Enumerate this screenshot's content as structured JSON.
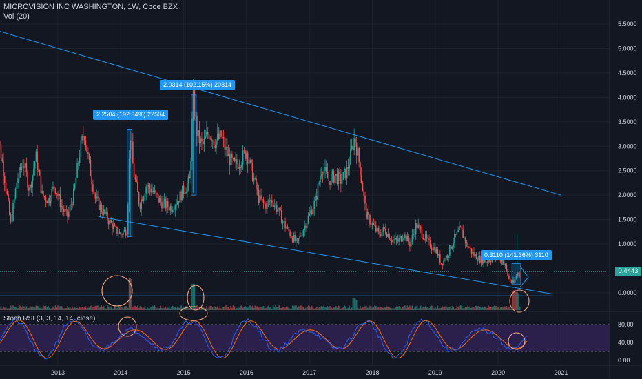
{
  "header": {
    "symbol_title": "MICROVISION INC WASHINGTON, 1W, Cboe BZX",
    "volume_label": "Vol (20)"
  },
  "indicator": {
    "label": "Stoch RSI (3, 3, 14, 14, close)"
  },
  "price_axis": {
    "ticks": [
      "5.5000",
      "5.0000",
      "4.5000",
      "4.0000",
      "3.5000",
      "3.0000",
      "2.5000",
      "2.0000",
      "1.5000",
      "1.0000",
      "0.0000"
    ],
    "current_price": "0.4443"
  },
  "rsi_axis": {
    "ticks": [
      "80.00",
      "40.00",
      "0.00"
    ]
  },
  "time_axis": {
    "ticks": [
      "2013",
      "2014",
      "2015",
      "2016",
      "2017",
      "2018",
      "2019",
      "2020",
      "2021"
    ]
  },
  "callouts": [
    {
      "text": "2.2504 (192.34%) 22504"
    },
    {
      "text": "2.0314 (102.15%) 20314"
    },
    {
      "text": "0.3110 (141.36%) 3110"
    }
  ],
  "colors": {
    "background": "#131722",
    "up_candle": "#26a69a",
    "down_candle": "#ef5350",
    "trendline": "#2196f3",
    "rsi_band": "#673ab7",
    "rsi_k": "#2962ff",
    "rsi_d": "#ff6d00",
    "annotation_circle": "#f4a77c"
  },
  "chart_data": {
    "type": "candlestick",
    "title": "MICROVISION INC WASHINGTON, 1W, Cboe BZX",
    "y_range": [
      0,
      5.8
    ],
    "x_range": [
      "2012",
      "2021"
    ],
    "price_path": [
      [
        "2012.00",
        5.3
      ],
      [
        "2012.05",
        3.2
      ],
      [
        "2012.15",
        2.4
      ],
      [
        "2012.25",
        1.4
      ],
      [
        "2012.35",
        2.3
      ],
      [
        "2012.45",
        2.7
      ],
      [
        "2012.55",
        2.1
      ],
      [
        "2012.65",
        2.8
      ],
      [
        "2012.75",
        2.0
      ],
      [
        "2012.85",
        1.9
      ],
      [
        "2012.95",
        2.2
      ],
      [
        "2013.05",
        1.8
      ],
      [
        "2013.15",
        1.55
      ],
      [
        "2013.25",
        2.0
      ],
      [
        "2013.35",
        2.9
      ],
      [
        "2013.42",
        3.3
      ],
      [
        "2013.50",
        2.6
      ],
      [
        "2013.60",
        1.9
      ],
      [
        "2013.70",
        1.7
      ],
      [
        "2013.80",
        1.5
      ],
      [
        "2013.90",
        1.3
      ],
      [
        "2014.00",
        1.2
      ],
      [
        "2014.10",
        1.3
      ],
      [
        "2014.15",
        3.3
      ],
      [
        "2014.20",
        2.5
      ],
      [
        "2014.30",
        1.8
      ],
      [
        "2014.40",
        2.2
      ],
      [
        "2014.50",
        2.1
      ],
      [
        "2014.60",
        1.9
      ],
      [
        "2014.70",
        1.8
      ],
      [
        "2014.80",
        1.75
      ],
      [
        "2014.90",
        1.9
      ],
      [
        "2015.00",
        2.1
      ],
      [
        "2015.10",
        2.3
      ],
      [
        "2015.15",
        4.0
      ],
      [
        "2015.22",
        3.2
      ],
      [
        "2015.30",
        3.0
      ],
      [
        "2015.40",
        3.3
      ],
      [
        "2015.50",
        3.1
      ],
      [
        "2015.60",
        3.2
      ],
      [
        "2015.70",
        2.8
      ],
      [
        "2015.80",
        2.6
      ],
      [
        "2015.90",
        2.7
      ],
      [
        "2016.00",
        2.9
      ],
      [
        "2016.10",
        2.4
      ],
      [
        "2016.20",
        1.9
      ],
      [
        "2016.30",
        1.8
      ],
      [
        "2016.40",
        1.9
      ],
      [
        "2016.50",
        1.7
      ],
      [
        "2016.60",
        1.4
      ],
      [
        "2016.70",
        1.2
      ],
      [
        "2016.80",
        1.0
      ],
      [
        "2016.90",
        1.3
      ],
      [
        "2017.00",
        1.6
      ],
      [
        "2017.10",
        1.9
      ],
      [
        "2017.20",
        2.6
      ],
      [
        "2017.30",
        2.3
      ],
      [
        "2017.40",
        2.4
      ],
      [
        "2017.50",
        2.3
      ],
      [
        "2017.60",
        2.5
      ],
      [
        "2017.72",
        3.2
      ],
      [
        "2017.80",
        2.6
      ],
      [
        "2017.90",
        1.6
      ],
      [
        "2018.00",
        1.4
      ],
      [
        "2018.10",
        1.2
      ],
      [
        "2018.20",
        1.3
      ],
      [
        "2018.30",
        1.1
      ],
      [
        "2018.40",
        1.05
      ],
      [
        "2018.50",
        1.2
      ],
      [
        "2018.60",
        1.0
      ],
      [
        "2018.70",
        1.4
      ],
      [
        "2018.80",
        1.2
      ],
      [
        "2018.90",
        1.0
      ],
      [
        "2019.00",
        0.9
      ],
      [
        "2019.10",
        0.6
      ],
      [
        "2019.20",
        0.8
      ],
      [
        "2019.30",
        1.1
      ],
      [
        "2019.40",
        1.3
      ],
      [
        "2019.50",
        1.0
      ],
      [
        "2019.60",
        0.8
      ],
      [
        "2019.70",
        0.7
      ],
      [
        "2019.80",
        0.65
      ],
      [
        "2019.90",
        0.7
      ],
      [
        "2020.00",
        0.75
      ],
      [
        "2020.10",
        0.6
      ],
      [
        "2020.18",
        0.25
      ],
      [
        "2020.25",
        0.2
      ],
      [
        "2020.30",
        0.4
      ],
      [
        "2020.35",
        0.44
      ]
    ],
    "volume_spikes": [
      [
        "2012.00",
        0.3
      ],
      [
        "2014.15",
        1.0
      ],
      [
        "2015.15",
        0.8
      ],
      [
        "2017.72",
        0.3
      ],
      [
        "2020.25",
        0.6
      ],
      [
        "2020.30",
        0.5
      ]
    ],
    "trendlines": [
      {
        "from": [
          "2012.00",
          5.38
        ],
        "to": [
          "2021.00",
          2.0
        ]
      },
      {
        "from": [
          "2013.65",
          1.56
        ],
        "to": [
          "2020.85",
          -0.02
        ]
      },
      {
        "from": [
          "2012.00",
          -0.06
        ],
        "to": [
          "2020.85",
          -0.06
        ]
      }
    ],
    "horizontal_lines": [
      0.44,
      0.0
    ],
    "stoch_rsi_range": [
      0,
      100
    ],
    "stoch_rsi_bands": [
      20,
      80
    ]
  }
}
